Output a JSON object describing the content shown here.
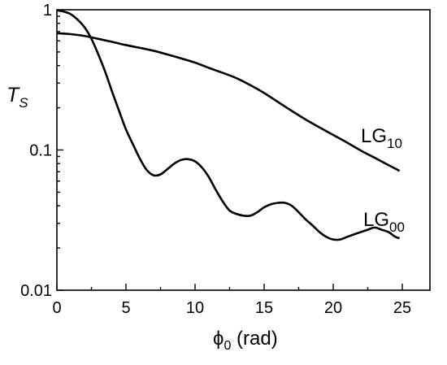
{
  "chart_data": {
    "type": "line",
    "y_scale": "log",
    "grid": false,
    "legend": "none (series labelled inline)",
    "xlim": [
      0,
      27
    ],
    "ylim": [
      0.01,
      1
    ],
    "x_ticks": [
      0,
      5,
      10,
      15,
      20,
      25
    ],
    "x_tick_labels": [
      "0",
      "5",
      "10",
      "15",
      "20",
      "25"
    ],
    "y_ticks": [
      0.01,
      0.1,
      1
    ],
    "y_tick_labels": [
      "0.01",
      "0.1",
      "1"
    ],
    "xlabel": {
      "base": "ϕ",
      "sub": "0",
      "rest": " (rad)"
    },
    "ylabel": {
      "base": "T",
      "sub": "S"
    },
    "series": [
      {
        "name": "LG00",
        "label": {
          "base": "LG",
          "sub": "00"
        },
        "color": "#000000",
        "x": [
          0,
          0.5,
          1,
          1.5,
          2,
          2.5,
          3,
          3.5,
          4,
          4.5,
          5,
          5.5,
          6,
          6.5,
          7,
          7.5,
          8,
          8.5,
          9,
          9.5,
          10,
          10.5,
          11,
          11.5,
          12,
          12.5,
          13,
          13.5,
          14,
          14.5,
          15,
          15.5,
          16,
          16.5,
          17,
          17.5,
          18,
          18.5,
          19,
          19.5,
          20,
          20.5,
          21,
          21.5,
          22,
          22.5,
          23,
          23.5,
          24,
          24.5,
          24.8
        ],
        "y": [
          0.99,
          0.97,
          0.93,
          0.85,
          0.75,
          0.62,
          0.48,
          0.36,
          0.26,
          0.19,
          0.14,
          0.11,
          0.087,
          0.072,
          0.066,
          0.067,
          0.073,
          0.08,
          0.085,
          0.086,
          0.083,
          0.075,
          0.064,
          0.052,
          0.043,
          0.037,
          0.035,
          0.034,
          0.034,
          0.036,
          0.039,
          0.041,
          0.042,
          0.042,
          0.04,
          0.036,
          0.032,
          0.029,
          0.026,
          0.024,
          0.023,
          0.023,
          0.024,
          0.025,
          0.026,
          0.027,
          0.028,
          0.027,
          0.026,
          0.024,
          0.0235
        ]
      },
      {
        "name": "LG10",
        "label": {
          "base": "LG",
          "sub": "10"
        },
        "color": "#000000",
        "x": [
          0,
          1,
          2,
          3,
          4,
          5,
          6,
          7,
          8,
          9,
          10,
          11,
          12,
          13,
          14,
          15,
          16,
          17,
          18,
          19,
          20,
          21,
          22,
          23,
          24,
          24.8
        ],
        "y": [
          0.68,
          0.67,
          0.65,
          0.62,
          0.59,
          0.56,
          0.535,
          0.51,
          0.48,
          0.45,
          0.42,
          0.385,
          0.355,
          0.325,
          0.29,
          0.255,
          0.22,
          0.19,
          0.165,
          0.145,
          0.128,
          0.113,
          0.099,
          0.088,
          0.078,
          0.071
        ]
      }
    ]
  }
}
